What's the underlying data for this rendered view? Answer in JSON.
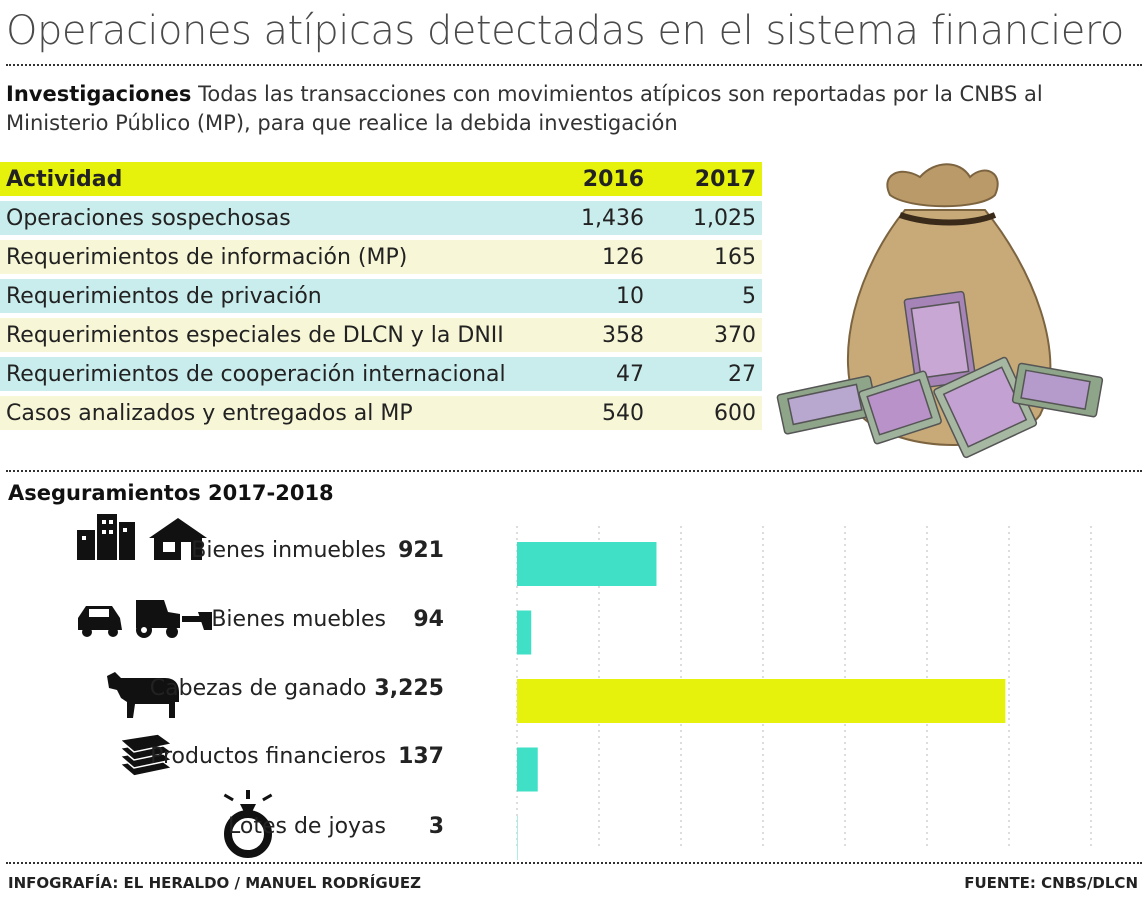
{
  "title": "Operaciones atípicas detectadas en el sistema financiero",
  "intro": {
    "lead": "Investigaciones",
    "text": " Todas las transacciones con movimientos atípicos son reportadas por la CNBS al Ministerio Público (MP), para que realice la debida investigación"
  },
  "table": {
    "headers": [
      "Actividad",
      "2016",
      "2017"
    ],
    "rows": [
      {
        "label": "Operaciones sospechosas",
        "v2016": "1,436",
        "v2017": "1,025"
      },
      {
        "label": "Requerimientos de información (MP)",
        "v2016": "126",
        "v2017": "165"
      },
      {
        "label": "Requerimientos de privación",
        "v2016": "10",
        "v2017": "5"
      },
      {
        "label": "Requerimientos especiales de DLCN y la DNII",
        "v2016": "358",
        "v2017": "370"
      },
      {
        "label": "Requerimientos de cooperación internacional",
        "v2016": "47",
        "v2017": "27"
      },
      {
        "label": "Casos analizados y entregados al MP",
        "v2016": "540",
        "v2017": "600"
      }
    ]
  },
  "chart_data": {
    "type": "bar",
    "orientation": "horizontal",
    "title": "Aseguramientos 2017-2018",
    "categories": [
      "Bienes inmuebles",
      "Bienes muebles",
      "Cabezas de ganado",
      "Productos financieros",
      "Lotes de joyas"
    ],
    "values": [
      921,
      94,
      3225,
      137,
      3
    ],
    "value_labels": [
      "921",
      "94",
      "3,225",
      "137",
      "3"
    ],
    "xlim": [
      0,
      3500
    ],
    "grid": true,
    "icons": [
      "buildings-house-icon",
      "car-tractor-icon",
      "cow-icon",
      "money-stack-icon",
      "ring-icon"
    ]
  },
  "colors": {
    "accent_yellow": "#e6f20c",
    "row_cyan": "#c9ecec",
    "row_cream": "#f7f6d6",
    "bar_cyan": "#3fe0c5",
    "bar_yellow": "#e6f20c"
  },
  "footer": {
    "credit": "INFOGRAFÍA: EL HERALDO / MANUEL RODRÍGUEZ",
    "source": "FUENTE: CNBS/DLCN"
  }
}
